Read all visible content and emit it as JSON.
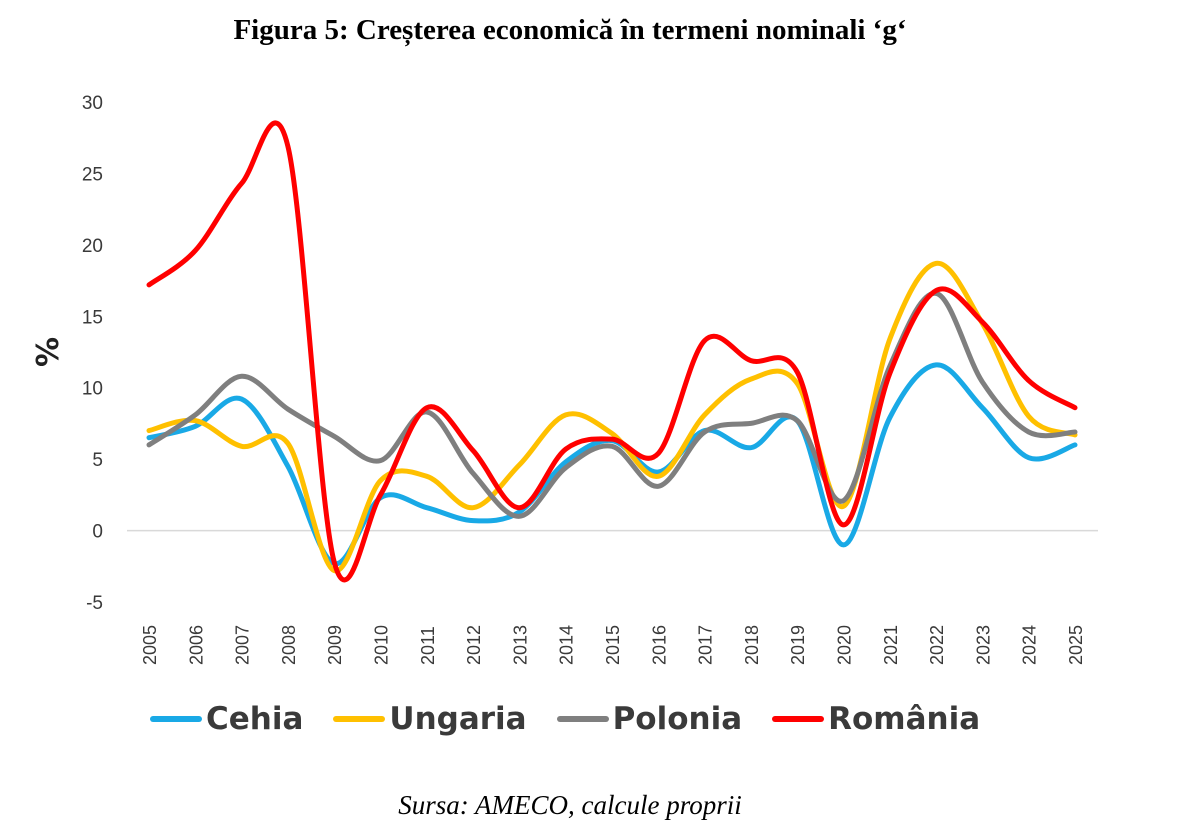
{
  "title": "Figura 5: Creșterea economică în termeni nominali ‘g‘",
  "source": "Sursa: AMECO, calcule proprii",
  "chart_data": {
    "type": "line",
    "title": "Figura 5: Creșterea economică în termeni nominali ‘g‘",
    "xlabel": "",
    "ylabel": "%",
    "ylim": [
      -5,
      30
    ],
    "yticks": [
      30,
      25,
      20,
      15,
      10,
      5,
      0,
      -5
    ],
    "grid": false,
    "legend_position": "bottom",
    "categories": [
      "2005",
      "2006",
      "2007",
      "2008",
      "2009",
      "2010",
      "2011",
      "2012",
      "2013",
      "2014",
      "2015",
      "2016",
      "2017",
      "2018",
      "2019",
      "2020",
      "2021",
      "2022",
      "2023",
      "2024",
      "2025"
    ],
    "series": [
      {
        "name": "Cehia",
        "color": "#19A9E6",
        "values": [
          6.5,
          7.3,
          9.2,
          4.5,
          -2.3,
          2.3,
          1.6,
          0.7,
          1.3,
          4.8,
          6.3,
          4.1,
          7.0,
          5.8,
          7.7,
          -1.0,
          7.9,
          11.6,
          8.6,
          5.1,
          6.0
        ]
      },
      {
        "name": "Ungaria",
        "color": "#FFC000",
        "values": [
          7.0,
          7.7,
          5.9,
          6.1,
          -2.8,
          3.5,
          3.8,
          1.6,
          4.6,
          8.1,
          6.8,
          3.8,
          8.1,
          10.6,
          10.3,
          1.7,
          13.4,
          18.7,
          14.5,
          8.0,
          6.7
        ]
      },
      {
        "name": "Polonia",
        "color": "#7F7F7F",
        "values": [
          6.0,
          8.1,
          10.8,
          8.5,
          6.6,
          4.9,
          8.3,
          4.0,
          1.0,
          4.4,
          5.9,
          3.1,
          6.9,
          7.5,
          7.7,
          2.1,
          11.5,
          16.6,
          10.4,
          6.9,
          6.9
        ]
      },
      {
        "name": "România",
        "color": "#FF0000",
        "values": [
          17.2,
          19.6,
          24.3,
          26.9,
          -2.2,
          2.5,
          8.6,
          5.6,
          1.6,
          5.7,
          6.4,
          5.4,
          13.3,
          11.9,
          11.1,
          0.4,
          11.0,
          16.8,
          14.6,
          10.5,
          8.6
        ]
      }
    ]
  }
}
